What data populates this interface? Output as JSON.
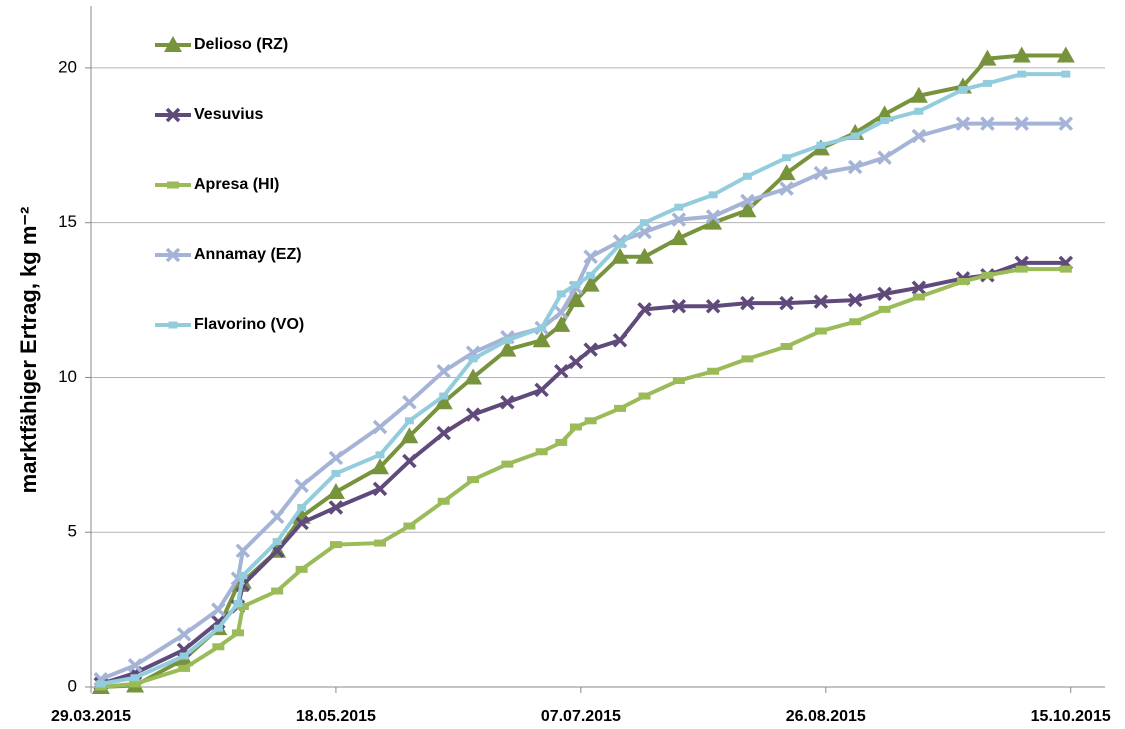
{
  "chart_data": {
    "type": "line",
    "y_label": "marktfähiger Ertrag, kg m⁻²",
    "x": [
      "2015-03-31",
      "2015-04-07",
      "2015-04-17",
      "2015-04-24",
      "2015-04-28",
      "2015-04-29",
      "2015-05-06",
      "2015-05-11",
      "2015-05-18",
      "2015-05-27",
      "2015-06-02",
      "2015-06-09",
      "2015-06-15",
      "2015-06-22",
      "2015-06-29",
      "2015-07-03",
      "2015-07-06",
      "2015-07-09",
      "2015-07-15",
      "2015-07-20",
      "2015-07-27",
      "2015-08-03",
      "2015-08-10",
      "2015-08-18",
      "2015-08-25",
      "2015-09-01",
      "2015-09-07",
      "2015-09-14",
      "2015-09-23",
      "2015-09-28",
      "2015-10-05",
      "2015-10-14"
    ],
    "series": [
      {
        "name": "Delioso (RZ)",
        "color": "#77933c",
        "marker": "triangle",
        "values": [
          0,
          0.05,
          0.9,
          1.9,
          3.3,
          3.4,
          4.4,
          5.5,
          6.3,
          7.1,
          8.1,
          9.2,
          10.0,
          10.9,
          11.2,
          11.7,
          12.5,
          13.0,
          13.9,
          13.9,
          14.5,
          15.0,
          15.4,
          16.6,
          17.4,
          17.9,
          18.5,
          19.1,
          19.4,
          20.3,
          20.4,
          20.4
        ]
      },
      {
        "name": "Vesuvius",
        "color": "#604a7b",
        "marker": "x",
        "values": [
          0.1,
          0.45,
          1.2,
          2.1,
          2.6,
          3.3,
          4.4,
          5.3,
          5.8,
          6.4,
          7.3,
          8.2,
          8.8,
          9.2,
          9.6,
          10.2,
          10.5,
          10.9,
          11.2,
          12.2,
          12.3,
          12.3,
          12.4,
          12.4,
          12.45,
          12.5,
          12.7,
          12.9,
          13.2,
          13.3,
          13.7,
          13.7
        ]
      },
      {
        "name": "Apresa (HI)",
        "color": "#9bbb59",
        "marker": "dash",
        "values": [
          0,
          0.1,
          0.6,
          1.3,
          1.75,
          2.6,
          3.1,
          3.8,
          4.6,
          4.65,
          5.2,
          6.0,
          6.7,
          7.2,
          7.6,
          7.9,
          8.4,
          8.6,
          9.0,
          9.4,
          9.9,
          10.2,
          10.6,
          11.0,
          11.5,
          11.8,
          12.2,
          12.6,
          13.1,
          13.3,
          13.5,
          13.5
        ]
      },
      {
        "name": "Annamay (EZ)",
        "color": "#a5b4d6",
        "marker": "x",
        "values": [
          0.25,
          0.7,
          1.7,
          2.5,
          3.5,
          4.4,
          5.5,
          6.5,
          7.4,
          8.4,
          9.2,
          10.2,
          10.8,
          11.3,
          11.6,
          12.1,
          12.9,
          13.9,
          14.4,
          14.7,
          15.1,
          15.2,
          15.7,
          16.1,
          16.6,
          16.8,
          17.1,
          17.8,
          18.2,
          18.2,
          18.2,
          18.2
        ]
      },
      {
        "name": "Flavorino (VO)",
        "color": "#93cddd",
        "marker": "square",
        "values": [
          0.1,
          0.3,
          1.0,
          1.9,
          2.7,
          3.6,
          4.7,
          5.8,
          6.9,
          7.5,
          8.6,
          9.4,
          10.6,
          11.2,
          11.6,
          12.7,
          13.0,
          13.3,
          14.3,
          15.0,
          15.5,
          15.9,
          16.5,
          17.1,
          17.5,
          17.8,
          18.3,
          18.6,
          19.3,
          19.5,
          19.8,
          19.8
        ]
      }
    ],
    "xlim": [
      "2015-03-29",
      "2015-10-22"
    ],
    "xticks": [
      {
        "value": "2015-03-29",
        "label": "29.03.2015"
      },
      {
        "value": "2015-05-18",
        "label": "18.05.2015"
      },
      {
        "value": "2015-07-07",
        "label": "07.07.2015"
      },
      {
        "value": "2015-08-26",
        "label": "26.08.2015"
      },
      {
        "value": "2015-10-15",
        "label": "15.10.2015"
      }
    ],
    "ylim": [
      0,
      22
    ],
    "yticks": [
      0,
      5,
      10,
      15,
      20
    ],
    "grid": true,
    "legend": "top-left"
  }
}
